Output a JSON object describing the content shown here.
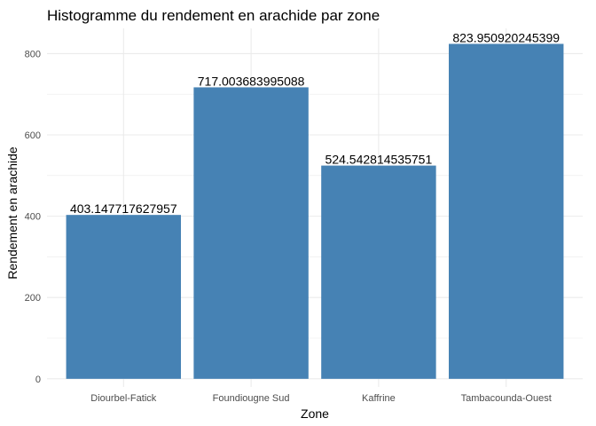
{
  "chart_data": {
    "type": "bar",
    "title": "Histogramme du rendement en arachide par zone",
    "xlabel": "Zone",
    "ylabel": "Rendement en arachide",
    "categories": [
      "Diourbel-Fatick",
      "Foundiougne Sud",
      "Kaffrine",
      "Tambacounda-Ouest"
    ],
    "values": [
      403.147717627957,
      717.003683995088,
      524.542814535751,
      823.950920245399
    ],
    "value_labels": [
      "403.147717627957",
      "717.003683995088",
      "524.542814535751",
      "823.950920245399"
    ],
    "y_ticks": [
      0,
      200,
      400,
      600,
      800
    ],
    "ylim": [
      -20,
      862
    ],
    "grid": true,
    "legend": "none",
    "bar_color": "#4682B4",
    "grid_color": "#ebebeb"
  }
}
